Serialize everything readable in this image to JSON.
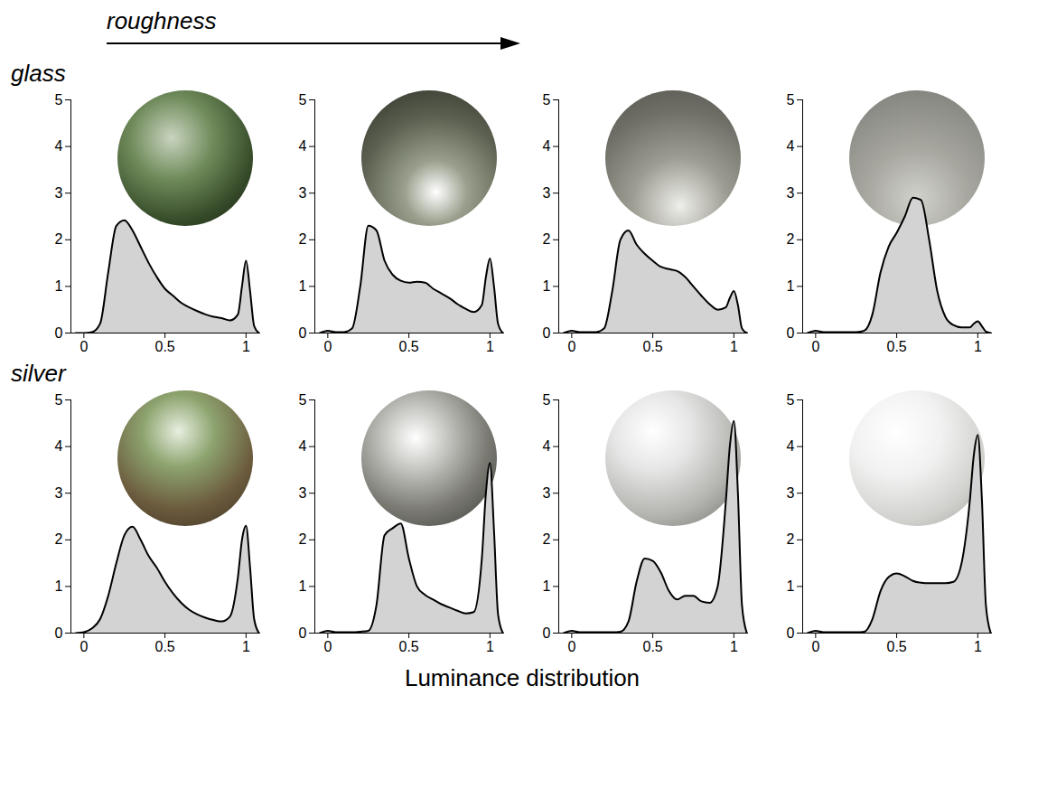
{
  "header": "roughness",
  "footer": "Luminance distribution",
  "chart_data": [
    {
      "type": "area",
      "group": "glass",
      "color": "#d3d3d3",
      "xlim": [
        -0.08,
        1.09
      ],
      "ylim": [
        0,
        5
      ],
      "xticks": [
        0,
        0.5,
        1
      ],
      "yticks": [
        0,
        1,
        2,
        3,
        4,
        5
      ],
      "x": [
        -0.05,
        0,
        0.05,
        0.1,
        0.15,
        0.2,
        0.25,
        0.3,
        0.35,
        0.4,
        0.45,
        0.5,
        0.55,
        0.6,
        0.65,
        0.7,
        0.75,
        0.8,
        0.85,
        0.9,
        0.95,
        0.975,
        1,
        1.025,
        1.05,
        1.08
      ],
      "values": [
        0,
        0,
        0.02,
        0.2,
        1.3,
        2.3,
        2.42,
        2.2,
        1.85,
        1.5,
        1.2,
        0.95,
        0.8,
        0.65,
        0.55,
        0.47,
        0.4,
        0.35,
        0.32,
        0.27,
        0.4,
        1.0,
        1.55,
        0.9,
        0.15,
        0
      ]
    },
    {
      "type": "area",
      "group": "glass",
      "color": "#d3d3d3",
      "xlim": [
        -0.08,
        1.09
      ],
      "ylim": [
        0,
        5
      ],
      "xticks": [
        0,
        0.5,
        1
      ],
      "yticks": [
        0,
        1,
        2,
        3,
        4,
        5
      ],
      "x": [
        -0.05,
        0,
        0.05,
        0.1,
        0.15,
        0.2,
        0.25,
        0.3,
        0.35,
        0.4,
        0.45,
        0.5,
        0.55,
        0.6,
        0.65,
        0.7,
        0.75,
        0.8,
        0.85,
        0.9,
        0.95,
        0.975,
        1,
        1.025,
        1.05,
        1.08
      ],
      "values": [
        0,
        0.05,
        0.02,
        0.02,
        0.1,
        1.0,
        2.3,
        2.2,
        1.55,
        1.25,
        1.12,
        1.08,
        1.1,
        1.08,
        0.95,
        0.85,
        0.75,
        0.62,
        0.52,
        0.45,
        0.6,
        1.2,
        1.6,
        1.0,
        0.2,
        0
      ]
    },
    {
      "type": "area",
      "group": "glass",
      "color": "#d3d3d3",
      "xlim": [
        -0.08,
        1.09
      ],
      "ylim": [
        0,
        5
      ],
      "xticks": [
        0,
        0.5,
        1
      ],
      "yticks": [
        0,
        1,
        2,
        3,
        4,
        5
      ],
      "x": [
        -0.05,
        0,
        0.05,
        0.1,
        0.15,
        0.2,
        0.25,
        0.3,
        0.35,
        0.4,
        0.45,
        0.5,
        0.55,
        0.6,
        0.65,
        0.7,
        0.75,
        0.8,
        0.85,
        0.9,
        0.95,
        0.975,
        1,
        1.025,
        1.05,
        1.08
      ],
      "values": [
        0,
        0.05,
        0.02,
        0.02,
        0.02,
        0.1,
        0.9,
        2.0,
        2.2,
        1.9,
        1.7,
        1.55,
        1.42,
        1.37,
        1.33,
        1.2,
        1.0,
        0.8,
        0.62,
        0.5,
        0.55,
        0.75,
        0.9,
        0.6,
        0.1,
        0
      ]
    },
    {
      "type": "area",
      "group": "glass",
      "color": "#d3d3d3",
      "xlim": [
        -0.08,
        1.09
      ],
      "ylim": [
        0,
        5
      ],
      "xticks": [
        0,
        0.5,
        1
      ],
      "yticks": [
        0,
        1,
        2,
        3,
        4,
        5
      ],
      "x": [
        -0.05,
        0,
        0.05,
        0.1,
        0.15,
        0.2,
        0.25,
        0.3,
        0.35,
        0.4,
        0.45,
        0.5,
        0.55,
        0.6,
        0.65,
        0.7,
        0.75,
        0.8,
        0.85,
        0.9,
        0.95,
        0.975,
        1,
        1.025,
        1.05,
        1.08
      ],
      "values": [
        0,
        0.05,
        0.02,
        0.02,
        0.02,
        0.02,
        0.02,
        0.05,
        0.4,
        1.3,
        1.85,
        2.15,
        2.5,
        2.9,
        2.85,
        2.0,
        0.9,
        0.35,
        0.17,
        0.12,
        0.12,
        0.2,
        0.25,
        0.15,
        0.03,
        0
      ]
    },
    {
      "type": "area",
      "group": "silver",
      "color": "#d3d3d3",
      "xlim": [
        -0.08,
        1.09
      ],
      "ylim": [
        0,
        5
      ],
      "xticks": [
        0,
        0.5,
        1
      ],
      "yticks": [
        0,
        1,
        2,
        3,
        4,
        5
      ],
      "x": [
        -0.05,
        0,
        0.05,
        0.1,
        0.15,
        0.2,
        0.25,
        0.3,
        0.35,
        0.4,
        0.45,
        0.5,
        0.55,
        0.6,
        0.65,
        0.7,
        0.75,
        0.8,
        0.85,
        0.9,
        0.95,
        0.975,
        1,
        1.025,
        1.05,
        1.08
      ],
      "values": [
        0,
        0.02,
        0.1,
        0.3,
        0.8,
        1.5,
        2.1,
        2.28,
        2.0,
        1.65,
        1.4,
        1.1,
        0.85,
        0.65,
        0.5,
        0.4,
        0.33,
        0.28,
        0.25,
        0.35,
        1.2,
        2.0,
        2.3,
        1.4,
        0.3,
        0
      ]
    },
    {
      "type": "area",
      "group": "silver",
      "color": "#d3d3d3",
      "xlim": [
        -0.08,
        1.09
      ],
      "ylim": [
        0,
        5
      ],
      "xticks": [
        0,
        0.5,
        1
      ],
      "yticks": [
        0,
        1,
        2,
        3,
        4,
        5
      ],
      "x": [
        -0.05,
        0,
        0.05,
        0.1,
        0.15,
        0.2,
        0.25,
        0.3,
        0.35,
        0.4,
        0.45,
        0.5,
        0.55,
        0.6,
        0.65,
        0.7,
        0.75,
        0.8,
        0.85,
        0.9,
        0.95,
        0.975,
        1,
        1.025,
        1.05,
        1.08
      ],
      "values": [
        0,
        0.05,
        0.02,
        0.02,
        0.02,
        0.03,
        0.05,
        0.6,
        2.1,
        2.25,
        2.35,
        1.6,
        1.0,
        0.82,
        0.72,
        0.62,
        0.55,
        0.48,
        0.42,
        0.45,
        1.6,
        3.0,
        3.65,
        2.2,
        0.4,
        0
      ]
    },
    {
      "type": "area",
      "group": "silver",
      "color": "#d3d3d3",
      "xlim": [
        -0.08,
        1.09
      ],
      "ylim": [
        0,
        5
      ],
      "xticks": [
        0,
        0.5,
        1
      ],
      "yticks": [
        0,
        1,
        2,
        3,
        4,
        5
      ],
      "x": [
        -0.05,
        0,
        0.05,
        0.1,
        0.15,
        0.2,
        0.25,
        0.3,
        0.35,
        0.4,
        0.45,
        0.5,
        0.55,
        0.6,
        0.65,
        0.7,
        0.75,
        0.8,
        0.85,
        0.9,
        0.95,
        0.975,
        1,
        1.025,
        1.05,
        1.08
      ],
      "values": [
        0,
        0.05,
        0.02,
        0.02,
        0.02,
        0.02,
        0.02,
        0.03,
        0.25,
        1.1,
        1.6,
        1.55,
        1.3,
        0.9,
        0.72,
        0.8,
        0.8,
        0.68,
        0.65,
        1.0,
        2.8,
        4.0,
        4.55,
        3.0,
        0.6,
        0
      ]
    },
    {
      "type": "area",
      "group": "silver",
      "color": "#d3d3d3",
      "xlim": [
        -0.08,
        1.09
      ],
      "ylim": [
        0,
        5
      ],
      "xticks": [
        0,
        0.5,
        1
      ],
      "yticks": [
        0,
        1,
        2,
        3,
        4,
        5
      ],
      "x": [
        -0.05,
        0,
        0.05,
        0.1,
        0.15,
        0.2,
        0.25,
        0.3,
        0.35,
        0.4,
        0.45,
        0.5,
        0.55,
        0.6,
        0.65,
        0.7,
        0.75,
        0.8,
        0.85,
        0.9,
        0.95,
        0.975,
        1,
        1.025,
        1.05,
        1.08
      ],
      "values": [
        0,
        0.05,
        0.02,
        0.02,
        0.02,
        0.02,
        0.02,
        0.03,
        0.3,
        0.9,
        1.2,
        1.28,
        1.22,
        1.12,
        1.08,
        1.07,
        1.07,
        1.07,
        1.1,
        1.5,
        2.8,
        3.8,
        4.25,
        2.9,
        0.6,
        0
      ]
    }
  ]
}
